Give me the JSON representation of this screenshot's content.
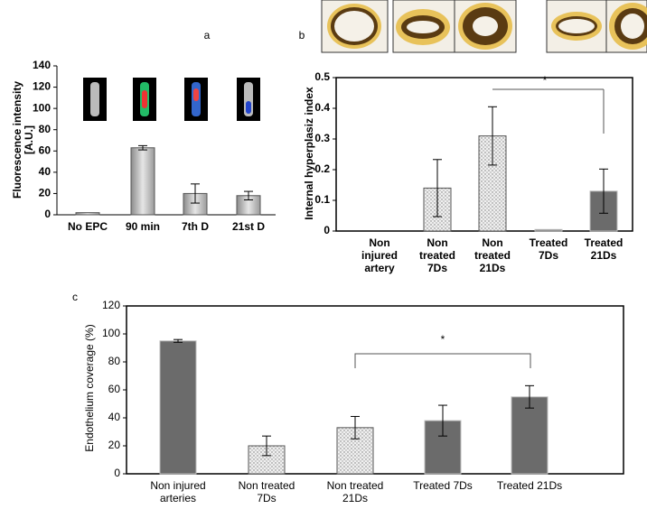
{
  "chart_data": [
    {
      "type": "bar",
      "panel_label": "a",
      "ylabel": [
        "Fluorescence intensity",
        "[A.U.]"
      ],
      "categories": [
        [
          "No EPC"
        ],
        [
          "90 min"
        ],
        [
          "7th D"
        ],
        [
          "21st D"
        ]
      ],
      "values": [
        2,
        63,
        20,
        18
      ],
      "errors": [
        0,
        2,
        9,
        4
      ],
      "fills": [
        "gray-gradient",
        "gray-gradient",
        "gray-gradient",
        "gray-gradient"
      ],
      "ylim": [
        0,
        140
      ],
      "yticks": [
        0,
        20,
        40,
        60,
        80,
        100,
        120,
        140
      ],
      "frame": false
    },
    {
      "type": "bar",
      "panel_label": "b",
      "ylabel": [
        "Internal hyperplasiz index"
      ],
      "categories": [
        [
          "Non",
          "injured",
          "artery"
        ],
        [
          "Non",
          "treated",
          "7Ds"
        ],
        [
          "Non",
          "treated",
          "21Ds"
        ],
        [
          "Treated",
          "7Ds"
        ],
        [
          "Treated",
          "21Ds"
        ]
      ],
      "values": [
        0,
        0.14,
        0.31,
        0.005,
        0.13
      ],
      "errors": [
        0,
        0.093,
        0.095,
        0,
        0.072
      ],
      "fills": [
        "dark-gray",
        "dots",
        "dots",
        "dark-gray",
        "dark-gray"
      ],
      "ylim": [
        0,
        0.5
      ],
      "yticks": [
        0,
        0.1,
        0.2,
        0.3,
        0.4,
        0.5
      ],
      "frame": true,
      "significance": "*"
    },
    {
      "type": "bar",
      "panel_label": "c",
      "ylabel": [
        "Endothelium coverage (%)"
      ],
      "categories": [
        [
          "Non injured",
          "arteries"
        ],
        [
          "Non treated",
          "7Ds"
        ],
        [
          "Non treated",
          "21Ds"
        ],
        [
          "Treated  7Ds"
        ],
        [
          "Treated 21Ds"
        ]
      ],
      "values": [
        95,
        20,
        33,
        38,
        55
      ],
      "errors": [
        1,
        7,
        8,
        11,
        8
      ],
      "fills": [
        "dark-gray",
        "dots",
        "dots",
        "dark-gray",
        "dark-gray"
      ],
      "ylim": [
        0,
        120
      ],
      "yticks": [
        0,
        20,
        40,
        60,
        80,
        100,
        120
      ],
      "frame": true,
      "significance": "*"
    }
  ]
}
